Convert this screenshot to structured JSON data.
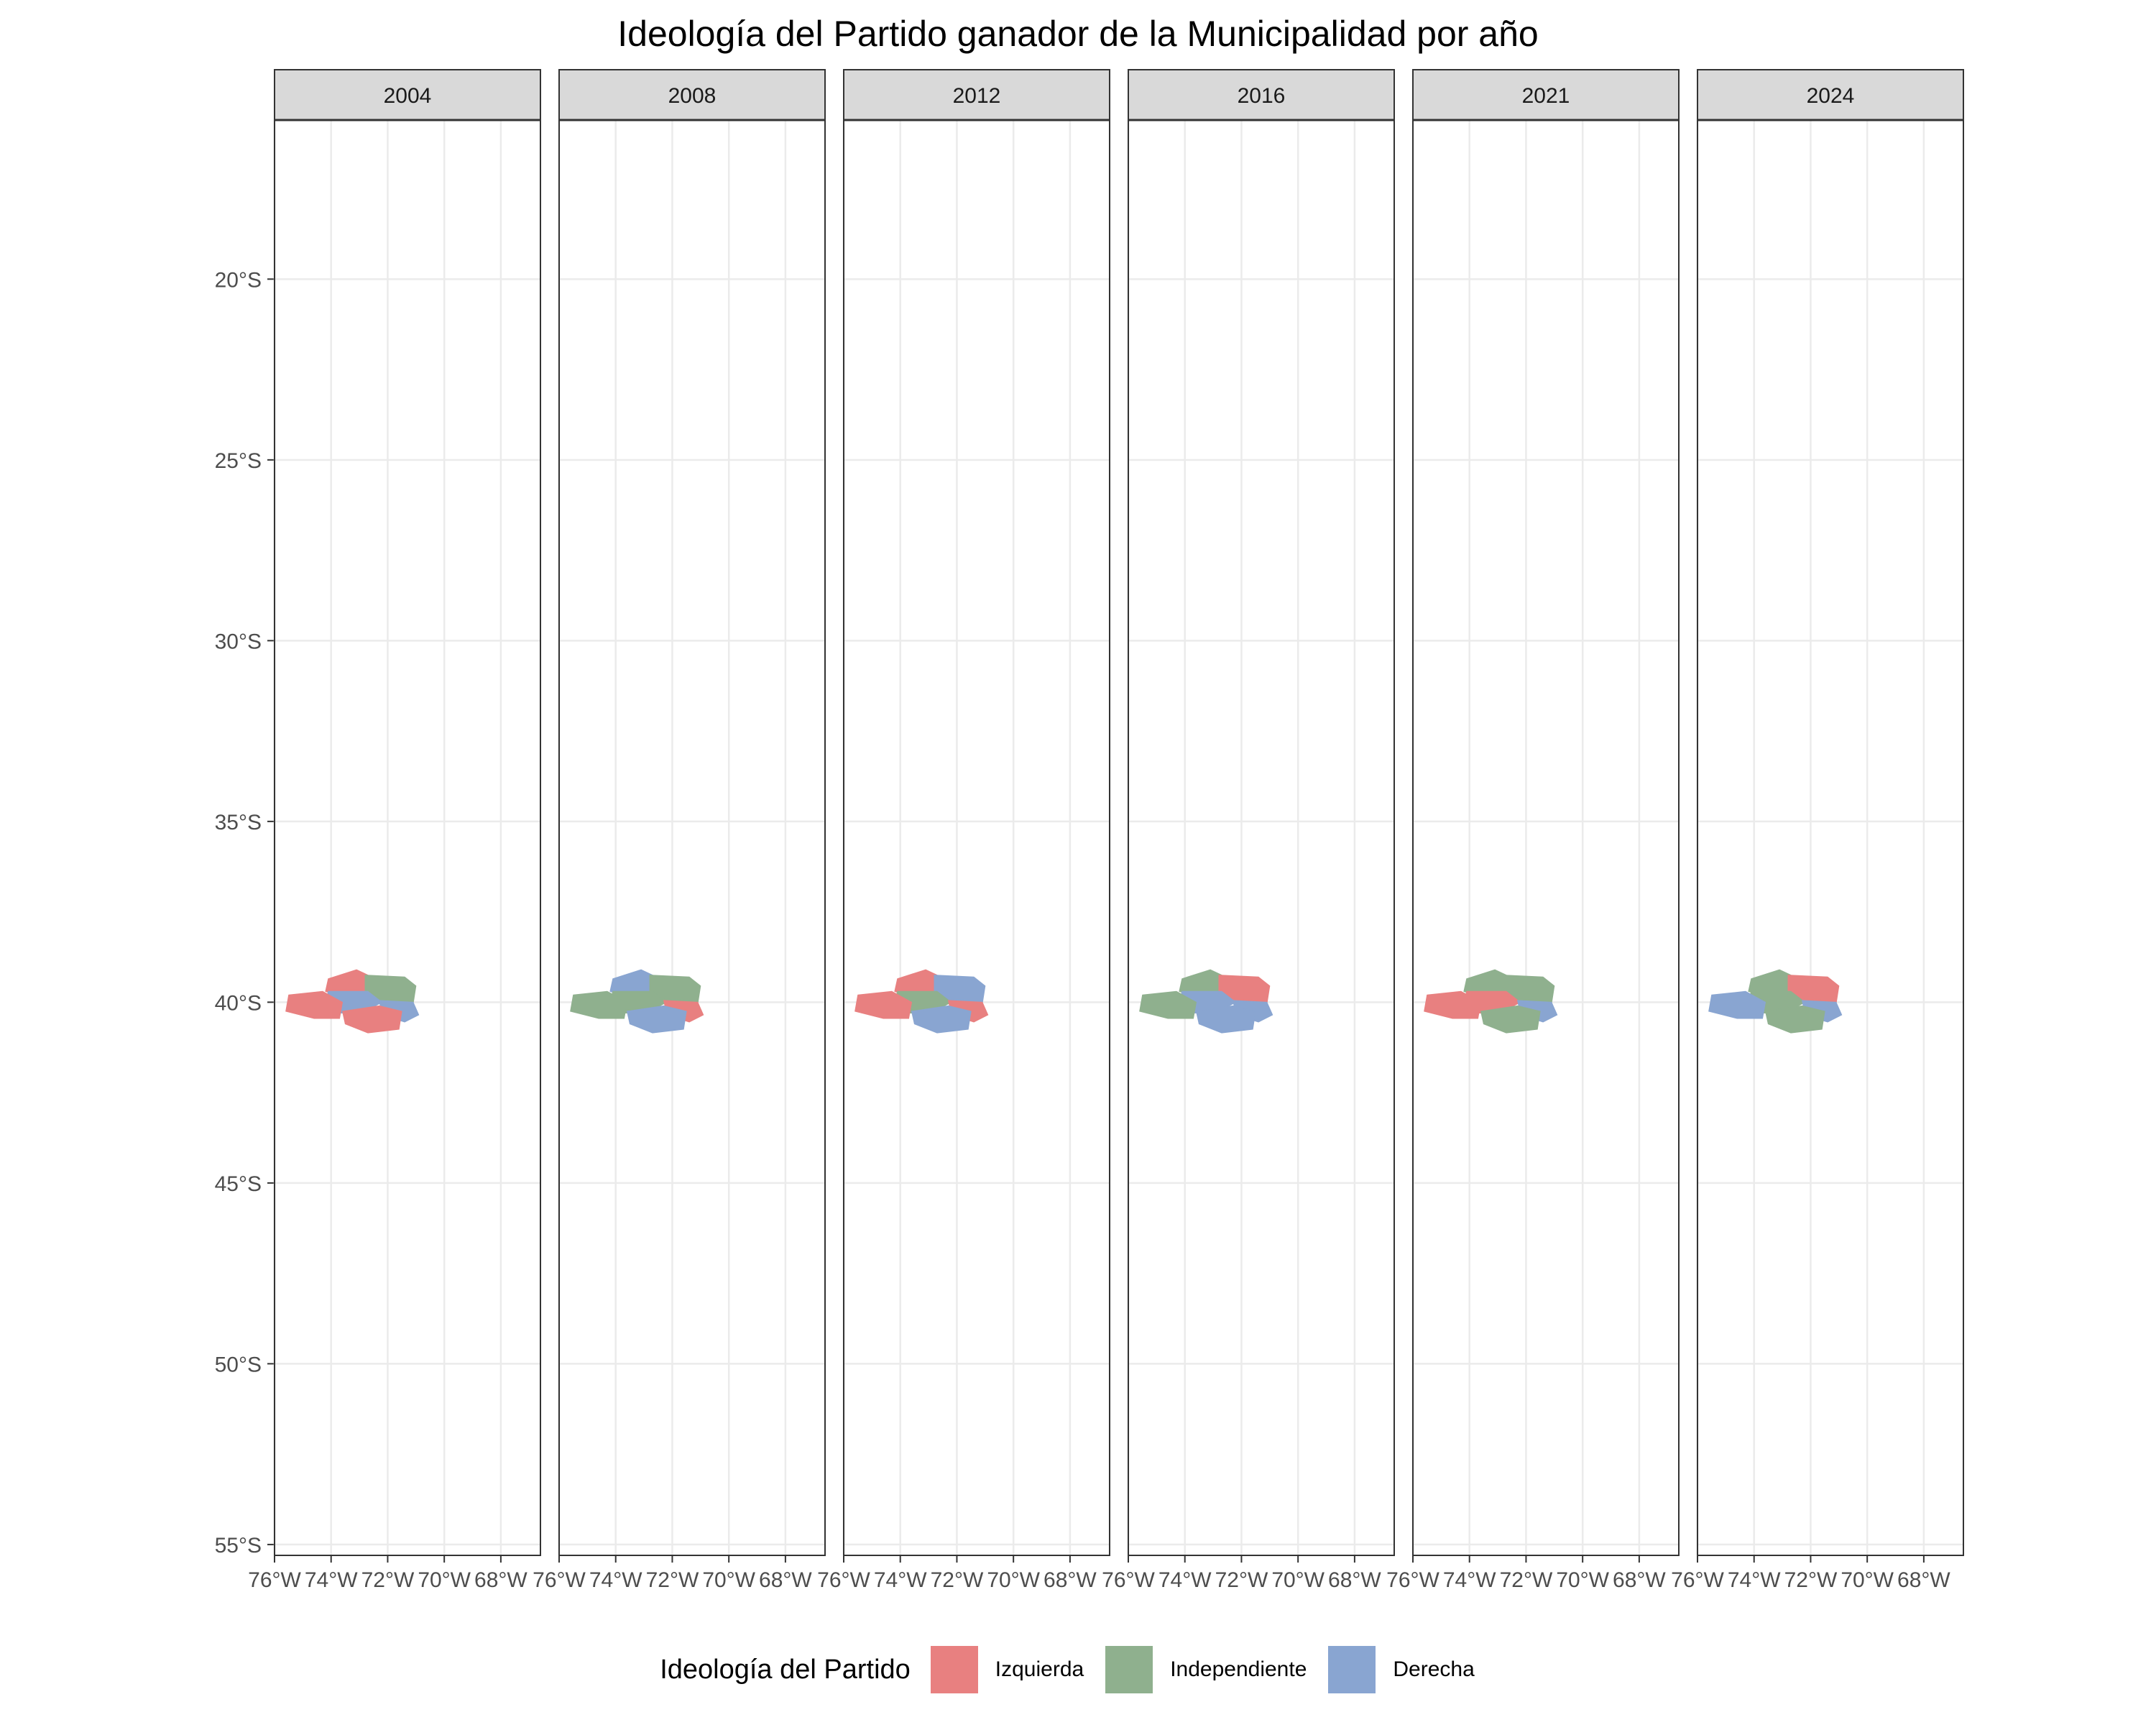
{
  "title": "Ideología del Partido ganador de la Municipalidad por año",
  "legend": {
    "title": "Ideología del Partido",
    "items": [
      {
        "label": "Izquierda",
        "color": "#E88080"
      },
      {
        "label": "Independiente",
        "color": "#8FB08E"
      },
      {
        "label": "Derecha",
        "color": "#89A5D1"
      }
    ]
  },
  "colors": {
    "Izquierda": "#E88080",
    "Independiente": "#8FB08E",
    "Derecha": "#89A5D1",
    "strip_bg": "#D9D9D9",
    "grid": "#EBEBEB",
    "panel_border": "#333333"
  },
  "axes": {
    "y_ticks": [
      {
        "value": -20,
        "label": "20°S"
      },
      {
        "value": -25,
        "label": "25°S"
      },
      {
        "value": -30,
        "label": "30°S"
      },
      {
        "value": -35,
        "label": "35°S"
      },
      {
        "value": -40,
        "label": "40°S"
      },
      {
        "value": -45,
        "label": "45°S"
      },
      {
        "value": -50,
        "label": "50°S"
      },
      {
        "value": -55,
        "label": "55°S"
      }
    ],
    "x_ticks": [
      {
        "value": -76,
        "label": "76°W"
      },
      {
        "value": -74,
        "label": "74°W"
      },
      {
        "value": -72,
        "label": "72°W"
      },
      {
        "value": -70,
        "label": "70°W"
      },
      {
        "value": -68,
        "label": "68°W"
      }
    ],
    "x_range": [
      -76,
      -66.6
    ],
    "y_range": [
      -55.3,
      -15.6
    ]
  },
  "panels": [
    {
      "year": "2004",
      "regions": {
        "west": "Izquierda",
        "north": "Izquierda",
        "ne": "Independiente",
        "center": "Derecha",
        "south": "Izquierda",
        "se": "Derecha"
      }
    },
    {
      "year": "2008",
      "regions": {
        "west": "Independiente",
        "north": "Derecha",
        "ne": "Independiente",
        "center": "Independiente",
        "south": "Derecha",
        "se": "Izquierda"
      }
    },
    {
      "year": "2012",
      "regions": {
        "west": "Izquierda",
        "north": "Izquierda",
        "ne": "Derecha",
        "center": "Independiente",
        "south": "Derecha",
        "se": "Izquierda"
      }
    },
    {
      "year": "2016",
      "regions": {
        "west": "Independiente",
        "north": "Independiente",
        "ne": "Izquierda",
        "center": "Derecha",
        "south": "Derecha",
        "se": "Derecha"
      }
    },
    {
      "year": "2021",
      "regions": {
        "west": "Izquierda",
        "north": "Independiente",
        "ne": "Independiente",
        "center": "Izquierda",
        "south": "Independiente",
        "se": "Derecha"
      }
    },
    {
      "year": "2024",
      "regions": {
        "west": "Derecha",
        "north": "Independiente",
        "ne": "Izquierda",
        "center": "Independiente",
        "south": "Independiente",
        "se": "Derecha"
      }
    }
  ]
}
